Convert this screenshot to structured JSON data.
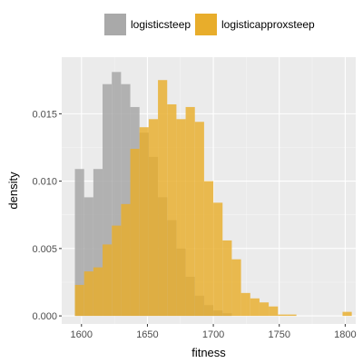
{
  "chart_data": {
    "type": "histogram",
    "xlabel": "fitness",
    "ylabel": "density",
    "xlim": [
      1585,
      1808
    ],
    "ylim": [
      -0.0006,
      0.0192
    ],
    "x_ticks": [
      1600,
      1650,
      1700,
      1750,
      1800
    ],
    "x_tick_labels": [
      "1600",
      "1650",
      "1700",
      "1750",
      "1800"
    ],
    "y_ticks": [
      0.0,
      0.005,
      0.01,
      0.015
    ],
    "y_tick_labels": [
      "0.000",
      "0.005",
      "0.010",
      "0.015"
    ],
    "grid": true,
    "legend_position": "top",
    "bin_edges": [
      1595,
      1602,
      1609,
      1616,
      1623,
      1630,
      1637,
      1644,
      1651,
      1658,
      1665,
      1672,
      1679,
      1686,
      1693,
      1700,
      1707,
      1714,
      1721,
      1728,
      1735,
      1742,
      1749,
      1756,
      1763,
      1770,
      1777,
      1784,
      1791,
      1798,
      1805
    ],
    "series": [
      {
        "name": "logisticsteep",
        "color": "#a9a9a9",
        "values": [
          0.0109,
          0.0088,
          0.0109,
          0.0172,
          0.0181,
          0.0172,
          0.0155,
          0.0136,
          0.0118,
          0.0088,
          0.0071,
          0.005,
          0.0029,
          0.0015,
          0.0008,
          0.0004,
          0.0002,
          0.0,
          0.0,
          0.0,
          0.0,
          0.0,
          0.0,
          0.0,
          0.0,
          0.0,
          0.0,
          0.0,
          0.0,
          0.0
        ]
      },
      {
        "name": "logisticapproxsteep",
        "color": "#e8ad2b",
        "values": [
          0.0023,
          0.0033,
          0.0036,
          0.0053,
          0.0067,
          0.0083,
          0.0124,
          0.014,
          0.0146,
          0.0175,
          0.0157,
          0.0146,
          0.0155,
          0.0144,
          0.01,
          0.0084,
          0.0056,
          0.0042,
          0.0017,
          0.0013,
          0.001,
          0.0007,
          0.0001,
          0.0001,
          0.0,
          0.0,
          0.0,
          0.0,
          0.0,
          0.0003
        ]
      }
    ]
  }
}
